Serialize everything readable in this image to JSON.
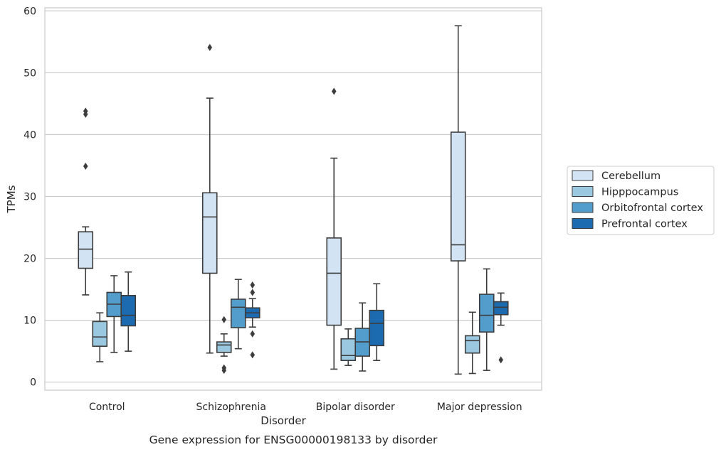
{
  "chart_data": {
    "type": "box",
    "caption": "Gene expression for ENSG00000198133 by disorder",
    "xlabel": "Disorder",
    "ylabel": "TPMs",
    "ylim": [
      -1.3,
      60.5
    ],
    "yticks": [
      0,
      10,
      20,
      30,
      40,
      50,
      60
    ],
    "grid": "horizontal",
    "legend_position": "right",
    "categories": [
      "Control",
      "Schizophrenia",
      "Bipolar disorder",
      "Major depression"
    ],
    "series": [
      {
        "name": "Cerebellum",
        "color": "#d2e3f3",
        "boxes": [
          {
            "whisker_low": 14.1,
            "q1": 18.4,
            "median": 21.5,
            "q3": 24.3,
            "whisker_high": 25.1,
            "outliers": [
              43.8,
              43.3,
              34.9
            ]
          },
          {
            "whisker_low": 4.7,
            "q1": 17.6,
            "median": 26.7,
            "q3": 30.6,
            "whisker_high": 45.9,
            "outliers": [
              54.1
            ]
          },
          {
            "whisker_low": 2.1,
            "q1": 9.2,
            "median": 17.6,
            "q3": 23.3,
            "whisker_high": 36.2,
            "outliers": [
              47.0
            ]
          },
          {
            "whisker_low": 1.3,
            "q1": 19.6,
            "median": 22.2,
            "q3": 40.4,
            "whisker_high": 57.6,
            "outliers": []
          }
        ]
      },
      {
        "name": "Hipppocampus",
        "color": "#9ac8e0",
        "boxes": [
          {
            "whisker_low": 3.3,
            "q1": 5.8,
            "median": 7.3,
            "q3": 9.8,
            "whisker_high": 11.2,
            "outliers": []
          },
          {
            "whisker_low": 4.2,
            "q1": 4.8,
            "median": 6.0,
            "q3": 6.5,
            "whisker_high": 7.8,
            "outliers": [
              10.1,
              2.3,
              1.9
            ]
          },
          {
            "whisker_low": 2.7,
            "q1": 3.5,
            "median": 4.3,
            "q3": 7.0,
            "whisker_high": 8.6,
            "outliers": []
          },
          {
            "whisker_low": 1.4,
            "q1": 4.7,
            "median": 6.7,
            "q3": 7.5,
            "whisker_high": 11.3,
            "outliers": []
          }
        ]
      },
      {
        "name": "Orbitofrontal cortex",
        "color": "#529dcc",
        "boxes": [
          {
            "whisker_low": 4.8,
            "q1": 10.6,
            "median": 12.6,
            "q3": 14.5,
            "whisker_high": 17.2,
            "outliers": []
          },
          {
            "whisker_low": 5.4,
            "q1": 8.8,
            "median": 12.1,
            "q3": 13.4,
            "whisker_high": 16.6,
            "outliers": []
          },
          {
            "whisker_low": 1.8,
            "q1": 4.2,
            "median": 6.5,
            "q3": 8.7,
            "whisker_high": 12.8,
            "outliers": []
          },
          {
            "whisker_low": 1.9,
            "q1": 8.1,
            "median": 10.8,
            "q3": 14.2,
            "whisker_high": 18.3,
            "outliers": []
          }
        ]
      },
      {
        "name": "Prefrontal cortex",
        "color": "#1c6aaf",
        "boxes": [
          {
            "whisker_low": 5.0,
            "q1": 9.1,
            "median": 10.8,
            "q3": 14.0,
            "whisker_high": 17.8,
            "outliers": []
          },
          {
            "whisker_low": 8.9,
            "q1": 10.4,
            "median": 11.2,
            "q3": 12.0,
            "whisker_high": 13.5,
            "outliers": [
              15.7,
              14.5,
              7.8,
              4.4
            ]
          },
          {
            "whisker_low": 3.5,
            "q1": 5.9,
            "median": 9.5,
            "q3": 11.6,
            "whisker_high": 15.9,
            "outliers": []
          },
          {
            "whisker_low": 9.2,
            "q1": 10.9,
            "median": 12.1,
            "q3": 13.0,
            "whisker_high": 14.4,
            "outliers": [
              3.6
            ]
          }
        ]
      }
    ]
  }
}
